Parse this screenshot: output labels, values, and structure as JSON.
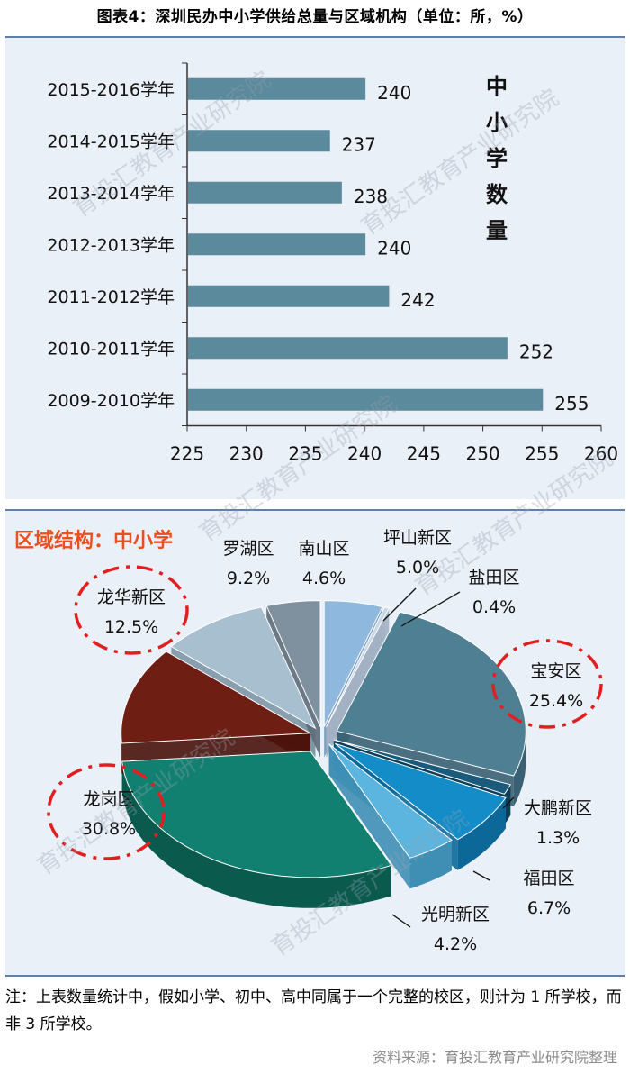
{
  "page": {
    "title": "图表4：深圳民办中小学供给总量与区域机构（单位：所，%）",
    "note": "注：上表数量统计中，假如小学、初中、高中同属于一个完整的校区，则计为 1 所学校，而非 3 所学校。",
    "source": "资料来源：育投汇教育产业研究院整理",
    "watermark": "育投汇教育产业研究院"
  },
  "colors": {
    "bar": "#5a8a9c",
    "panel": "#eaf0f8",
    "highlight": "#e02020",
    "pie_title": "#e8501e"
  },
  "chart_data": [
    {
      "type": "bar",
      "orientation": "horizontal",
      "categories": [
        "2015-2016学年",
        "2014-2015学年",
        "2013-2014学年",
        "2012-2013学年",
        "2011-2012学年",
        "2010-2011学年",
        "2009-2010学年"
      ],
      "values": [
        240,
        237,
        238,
        240,
        242,
        252,
        255
      ],
      "value_labels": [
        "240",
        "237",
        "238",
        "240",
        "242",
        "252",
        "255"
      ],
      "xlim": [
        225,
        260
      ],
      "xticks": [
        225,
        230,
        235,
        240,
        245,
        250,
        255,
        260
      ],
      "xtick_labels": [
        "225",
        "230",
        "235",
        "240",
        "245",
        "250",
        "255",
        "260"
      ],
      "side_label": [
        "中",
        "小",
        "学",
        "数",
        "量"
      ],
      "grid": false
    },
    {
      "type": "pie",
      "title": "区域结构：中小学",
      "labels": [
        "罗湖区",
        "南山区",
        "坪山新区",
        "盐田区",
        "宝安区",
        "大鹏新区",
        "福田区",
        "光明新区",
        "龙岗区",
        "龙华新区"
      ],
      "values": [
        9.2,
        4.6,
        5.0,
        0.4,
        25.4,
        1.3,
        6.7,
        4.2,
        30.8,
        12.5
      ],
      "value_labels": [
        "9.2%",
        "4.6%",
        "5.0%",
        "0.4%",
        "25.4%",
        "1.3%",
        "6.7%",
        "4.2%",
        "30.8%",
        "12.5%"
      ],
      "highlighted": [
        "龙华新区",
        "宝安区",
        "龙岗区"
      ]
    }
  ]
}
